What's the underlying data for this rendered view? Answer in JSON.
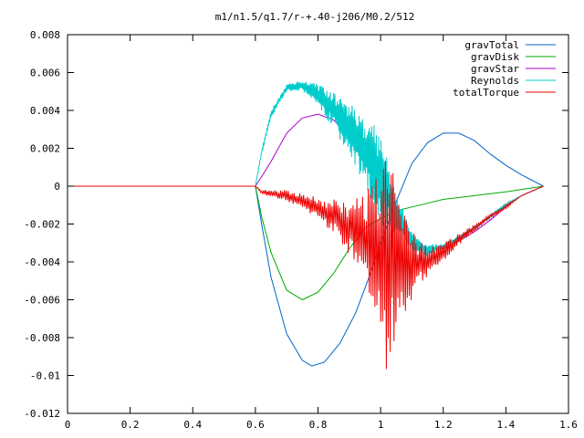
{
  "chart_data": {
    "type": "line",
    "title": "m1/n1.5/q1.7/r-+.40-j206/M0.2/512",
    "xlabel": "",
    "ylabel": "",
    "xlim": [
      0,
      1.6
    ],
    "ylim": [
      -0.012,
      0.008
    ],
    "x_ticks": [
      0,
      0.2,
      0.4,
      0.6,
      0.8,
      1,
      1.2,
      1.4,
      1.6
    ],
    "x_tick_labels": [
      "0",
      "0.2",
      "0.4",
      "0.6",
      "0.8",
      "1",
      "1.2",
      "1.4",
      "1.6"
    ],
    "y_ticks": [
      0.008,
      0.006,
      0.004,
      0.002,
      0,
      -0.002,
      -0.004,
      -0.006,
      -0.008,
      -0.01,
      -0.012
    ],
    "y_tick_labels": [
      "0.008",
      "0.006",
      "0.004",
      "0.002",
      "0",
      "-0.002",
      "-0.004",
      "-0.006",
      "-0.008",
      "-0.01",
      "-0.012"
    ],
    "grid": false,
    "legend_position": "top-right",
    "series": [
      {
        "name": "gravTotal",
        "color": "#0066cc",
        "x": [
          0.6,
          0.62,
          0.65,
          0.7,
          0.75,
          0.78,
          0.82,
          0.87,
          0.92,
          0.97,
          1.0,
          1.05,
          1.1,
          1.15,
          1.2,
          1.25,
          1.3,
          1.35,
          1.4,
          1.45,
          1.52
        ],
        "y": [
          0,
          -0.002,
          -0.0048,
          -0.0078,
          -0.0092,
          -0.0095,
          -0.0093,
          -0.0083,
          -0.0067,
          -0.0045,
          -0.003,
          -0.0008,
          0.0012,
          0.0023,
          0.0028,
          0.0028,
          0.0024,
          0.0017,
          0.0011,
          0.0006,
          0
        ]
      },
      {
        "name": "gravDisk",
        "color": "#00aa00",
        "x": [
          0.6,
          0.62,
          0.65,
          0.7,
          0.75,
          0.8,
          0.85,
          0.9,
          0.95,
          1.0,
          1.05,
          1.1,
          1.15,
          1.2,
          1.3,
          1.4,
          1.52
        ],
        "y": [
          0,
          -0.0016,
          -0.0035,
          -0.0055,
          -0.006,
          -0.0056,
          -0.0046,
          -0.0033,
          -0.0022,
          -0.0017,
          -0.0013,
          -0.0011,
          -0.0009,
          -0.0007,
          -0.0005,
          -0.0003,
          0
        ]
      },
      {
        "name": "gravStar",
        "color": "#aa00cc",
        "x": [
          0.6,
          0.62,
          0.65,
          0.7,
          0.75,
          0.8,
          0.85,
          0.9,
          0.95,
          1.0,
          1.05,
          1.1,
          1.15,
          1.2,
          1.25,
          1.3,
          1.35,
          1.4,
          1.45,
          1.52
        ],
        "y": [
          0,
          0.0005,
          0.0013,
          0.0028,
          0.0036,
          0.0038,
          0.0035,
          0.0026,
          0.0013,
          -0.0002,
          -0.0017,
          -0.0029,
          -0.0034,
          -0.0033,
          -0.0029,
          -0.0024,
          -0.0018,
          -0.0011,
          -0.0005,
          0
        ]
      },
      {
        "name": "Reynolds",
        "color": "#00cccc",
        "x": [
          0.6,
          0.62,
          0.65,
          0.7,
          0.75,
          0.8,
          0.85,
          0.9,
          0.95,
          1.0,
          1.05,
          1.1,
          1.15,
          1.2,
          1.25,
          1.3,
          1.35,
          1.4,
          1.45,
          1.52
        ],
        "y": [
          0,
          0.0018,
          0.0038,
          0.0052,
          0.0053,
          0.0048,
          0.004,
          0.003,
          0.0018,
          0.0005,
          -0.0014,
          -0.003,
          -0.0034,
          -0.0032,
          -0.0028,
          -0.0022,
          -0.0016,
          -0.001,
          -0.0005,
          0
        ],
        "noise_amplitude": [
          0,
          0.0001,
          0.0002,
          0.0002,
          0.0003,
          0.0006,
          0.001,
          0.0014,
          0.0018,
          0.0025,
          0.0012,
          0.0005,
          0.0003,
          0.0002,
          0.0002,
          0.0001,
          0.0001,
          0.0001,
          0,
          0
        ]
      },
      {
        "name": "totalTorque",
        "color": "#ee0000",
        "x": [
          0,
          0.6,
          0.62,
          0.65,
          0.7,
          0.75,
          0.8,
          0.85,
          0.9,
          0.95,
          1.0,
          1.02,
          1.05,
          1.1,
          1.15,
          1.2,
          1.25,
          1.3,
          1.35,
          1.4,
          1.45,
          1.52
        ],
        "y": [
          0,
          0,
          -0.0003,
          -0.0004,
          -0.0005,
          -0.0008,
          -0.0012,
          -0.0016,
          -0.0022,
          -0.0028,
          -0.0033,
          -0.0036,
          -0.004,
          -0.0042,
          -0.004,
          -0.0035,
          -0.0028,
          -0.0022,
          -0.0016,
          -0.0011,
          -0.0005,
          0
        ],
        "noise_amplitude": [
          0,
          0,
          0.0001,
          0.0002,
          0.0003,
          0.0004,
          0.0006,
          0.0009,
          0.0014,
          0.0024,
          0.0045,
          0.0065,
          0.004,
          0.0018,
          0.0008,
          0.0005,
          0.0003,
          0.0002,
          0.0001,
          0.0001,
          0,
          0
        ]
      }
    ]
  }
}
